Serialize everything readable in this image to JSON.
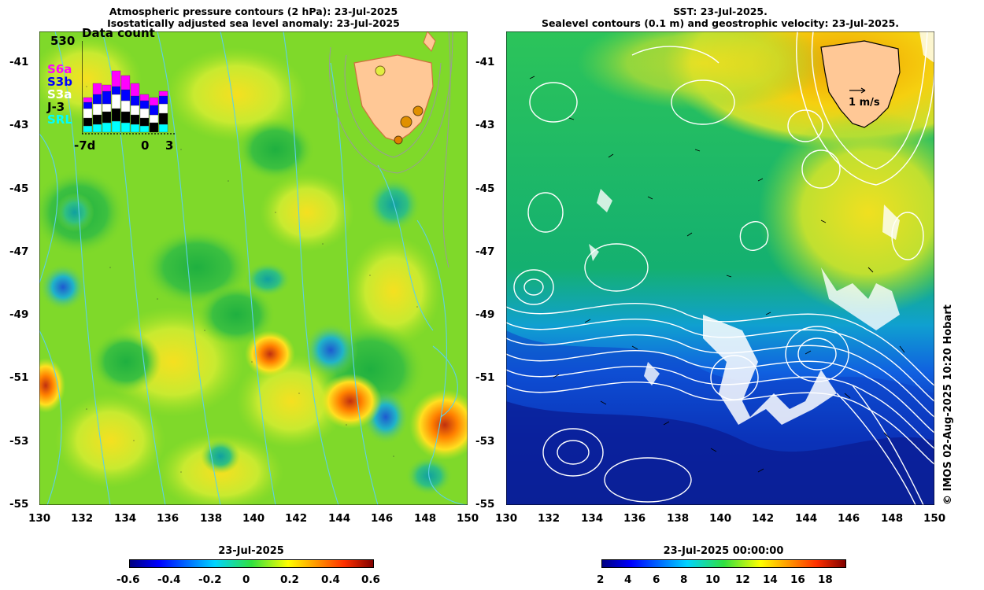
{
  "left_panel": {
    "title_line1": "Atmospheric pressure contours (2 hPa): 23-Jul-2025",
    "title_line2": "Isostatically adjusted sea level anomaly: 23-Jul-2025",
    "lat_ticks": [
      "-41",
      "-43",
      "-45",
      "-47",
      "-49",
      "-51",
      "-53",
      "-55"
    ],
    "lon_ticks": [
      "130",
      "132",
      "134",
      "136",
      "138",
      "140",
      "142",
      "144",
      "146",
      "148",
      "150"
    ],
    "inset": {
      "title": "Data count",
      "max_count": "530",
      "satellites": [
        "S6a",
        "S3b",
        "S3a",
        "J-3",
        "SRL"
      ],
      "satellite_colors": [
        "#ff00ff",
        "#0000ff",
        "#ffffff",
        "#000000",
        "#00ffff"
      ],
      "x_labels": [
        "-7d",
        "0",
        "3"
      ]
    },
    "colorbar": {
      "title": "23-Jul-2025",
      "ticks": [
        "-0.6",
        "-0.4",
        "-0.2",
        "0",
        "0.2",
        "0.4",
        "0.6"
      ]
    }
  },
  "right_panel": {
    "title_line1": "SST: 23-Jul-2025.",
    "title_line2": "Sealevel contours (0.1 m) and geostrophic velocity: 23-Jul-2025.",
    "lat_ticks": [
      "-41",
      "-43",
      "-45",
      "-47",
      "-49",
      "-51",
      "-53",
      "-55"
    ],
    "lon_ticks": [
      "130",
      "132",
      "134",
      "136",
      "138",
      "140",
      "142",
      "144",
      "146",
      "148",
      "150"
    ],
    "velocity_label": "1 m/s",
    "colorbar": {
      "title": "23-Jul-2025 00:00:00",
      "ticks": [
        "2",
        "4",
        "6",
        "8",
        "10",
        "12",
        "14",
        "16",
        "18"
      ]
    }
  },
  "credit": "© IMOS 02-Aug-2025 10:20 Hobart",
  "colors": {
    "land": "#ffc896",
    "sla_field": "#7fd92a",
    "sst_warm": "#f0c000",
    "sst_mid": "#22c25a",
    "sst_cold": "#0a1a90",
    "pressure_contour": "#5ed0e6",
    "sst_contour": "#ffffff"
  }
}
